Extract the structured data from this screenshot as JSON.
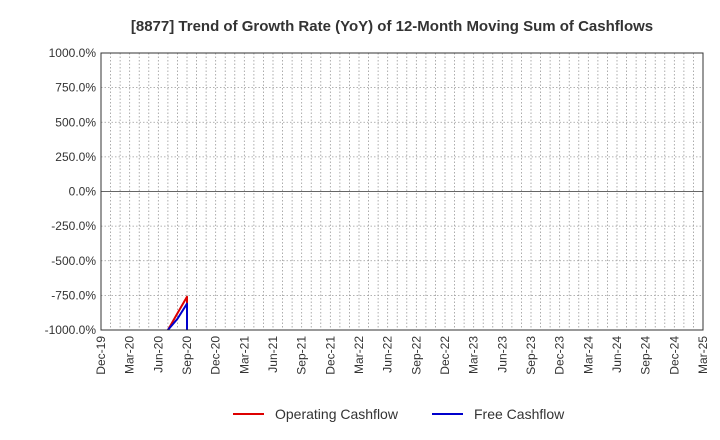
{
  "chart_data": {
    "type": "line",
    "title": "[8877]  Trend of Growth Rate (YoY) of 12-Month Moving Sum of Cashflows",
    "xlabel": "",
    "ylabel": "",
    "ylim": [
      -1000,
      1000
    ],
    "y_ticks": [
      "1000.0%",
      "750.0%",
      "500.0%",
      "250.0%",
      "0.0%",
      "-250.0%",
      "-500.0%",
      "-750.0%",
      "-1000.0%"
    ],
    "y_tick_values": [
      1000,
      750,
      500,
      250,
      0,
      -250,
      -500,
      -750,
      -1000
    ],
    "x_range": [
      "2019-12",
      "2025-03"
    ],
    "x_ticks": [
      "Dec-19",
      "Mar-20",
      "Jun-20",
      "Sep-20",
      "Dec-20",
      "Mar-21",
      "Jun-21",
      "Sep-21",
      "Dec-21",
      "Mar-22",
      "Jun-22",
      "Sep-22",
      "Dec-22",
      "Mar-23",
      "Jun-23",
      "Sep-23",
      "Dec-23",
      "Mar-24",
      "Jun-24",
      "Sep-24",
      "Dec-24",
      "Mar-25"
    ],
    "grid": true,
    "legend_position": "bottom",
    "series": [
      {
        "name": "Operating Cashflow",
        "color": "#dd0000",
        "points": [
          {
            "x": "2020-07",
            "y": -1000
          },
          {
            "x": "2020-08",
            "y": -880
          },
          {
            "x": "2020-09",
            "y": -760
          },
          {
            "x": "2020-09",
            "y": -1000
          }
        ]
      },
      {
        "name": "Free Cashflow",
        "color": "#0000cc",
        "points": [
          {
            "x": "2020-07",
            "y": -1000
          },
          {
            "x": "2020-08",
            "y": -920
          },
          {
            "x": "2020-09",
            "y": -810
          },
          {
            "x": "2020-09",
            "y": -1000
          }
        ]
      }
    ]
  }
}
